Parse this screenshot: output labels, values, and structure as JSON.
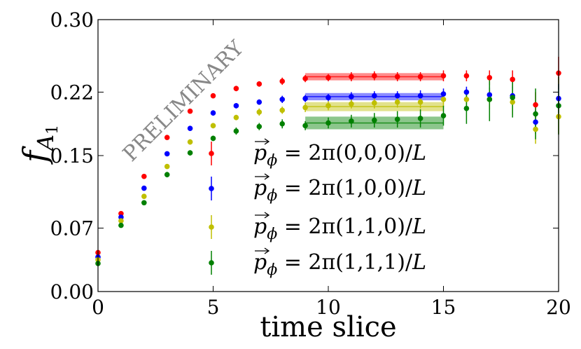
{
  "chart_data": {
    "type": "scatter",
    "title": "",
    "xlabel": "time slice",
    "ylabel": "f_A1",
    "ylabel_main": "f",
    "ylabel_sub": "A",
    "ylabel_subsub": "1",
    "xlim": [
      0,
      20
    ],
    "ylim": [
      0.0,
      0.3
    ],
    "x_ticks": [
      0,
      5,
      10,
      15,
      20
    ],
    "x_tick_labels": [
      "0",
      "5",
      "10",
      "15",
      "20"
    ],
    "y_ticks": [
      0.0,
      0.07,
      0.15,
      0.22,
      0.3
    ],
    "y_tick_labels": [
      "0.00",
      "0.07",
      "0.15",
      "0.22",
      "0.30"
    ],
    "grid": false,
    "legend_position": "lower-center",
    "watermark": "PRELIMINARY",
    "series": [
      {
        "name": "p_phi = 2pi(0,0,0)/L",
        "label": "pϕ = 2π(0,0,0)/L",
        "color": "#ff0000",
        "x": [
          0,
          1,
          2,
          3,
          4,
          5,
          6,
          7,
          8,
          9,
          10,
          11,
          12,
          13,
          14,
          15,
          16,
          17,
          18,
          19,
          20
        ],
        "y": [
          0.043,
          0.086,
          0.127,
          0.17,
          0.199,
          0.216,
          0.224,
          0.229,
          0.232,
          0.235,
          0.236,
          0.237,
          0.238,
          0.237,
          0.237,
          0.238,
          0.238,
          0.236,
          0.234,
          0.206,
          0.241
        ],
        "err": [
          0.002,
          0.002,
          0.002,
          0.002,
          0.002,
          0.002,
          0.003,
          0.003,
          0.004,
          0.004,
          0.004,
          0.005,
          0.005,
          0.005,
          0.005,
          0.006,
          0.006,
          0.008,
          0.01,
          0.014,
          0.018
        ],
        "fit": {
          "x_range": [
            9,
            15
          ],
          "value": 0.237,
          "err": 0.004
        }
      },
      {
        "name": "p_phi = 2pi(1,0,0)/L",
        "label": "pϕ = 2π(1,0,0)/L",
        "color": "#0000ff",
        "x": [
          0,
          1,
          2,
          3,
          4,
          5,
          6,
          7,
          8,
          9,
          10,
          11,
          12,
          13,
          14,
          15,
          16,
          17,
          18,
          19,
          20
        ],
        "y": [
          0.038,
          0.082,
          0.114,
          0.152,
          0.18,
          0.197,
          0.205,
          0.209,
          0.212,
          0.213,
          0.214,
          0.215,
          0.216,
          0.216,
          0.216,
          0.218,
          0.22,
          0.217,
          0.216,
          0.187,
          0.213
        ],
        "err": [
          0.002,
          0.002,
          0.002,
          0.002,
          0.002,
          0.003,
          0.003,
          0.003,
          0.004,
          0.004,
          0.004,
          0.005,
          0.005,
          0.005,
          0.006,
          0.006,
          0.006,
          0.008,
          0.01,
          0.013,
          0.016
        ],
        "fit": {
          "x_range": [
            9,
            15
          ],
          "value": 0.215,
          "err": 0.004
        }
      },
      {
        "name": "p_phi = 2pi(1,1,0)/L",
        "label": "pϕ = 2π(1,1,0)/L",
        "color": "#bfbf00",
        "x": [
          0,
          1,
          2,
          3,
          4,
          5,
          6,
          7,
          8,
          9,
          10,
          11,
          12,
          13,
          14,
          15,
          16,
          17,
          18,
          19,
          20
        ],
        "y": [
          0.035,
          0.078,
          0.105,
          0.138,
          0.165,
          0.183,
          0.192,
          0.198,
          0.2,
          0.203,
          0.205,
          0.207,
          0.208,
          0.209,
          0.209,
          0.212,
          0.212,
          0.212,
          0.209,
          0.179,
          0.193
        ],
        "err": [
          0.002,
          0.002,
          0.002,
          0.002,
          0.003,
          0.003,
          0.003,
          0.004,
          0.004,
          0.005,
          0.005,
          0.005,
          0.006,
          0.006,
          0.007,
          0.008,
          0.009,
          0.011,
          0.014,
          0.016,
          0.019
        ],
        "fit": {
          "x_range": [
            9,
            15
          ],
          "value": 0.204,
          "err": 0.005
        }
      },
      {
        "name": "p_phi = 2pi(1,1,1)/L",
        "label": "pϕ = 2π(1,1,1)/L",
        "color": "#008000",
        "x": [
          0,
          1,
          2,
          3,
          4,
          5,
          6,
          7,
          8,
          9,
          10,
          11,
          12,
          13,
          14,
          15,
          16,
          17,
          18,
          19,
          20
        ],
        "y": [
          0.031,
          0.073,
          0.098,
          0.129,
          0.153,
          0.169,
          0.177,
          0.182,
          0.185,
          0.183,
          0.186,
          0.188,
          0.189,
          0.19,
          0.191,
          0.194,
          0.202,
          0.212,
          0.214,
          0.196,
          0.205
        ],
        "err": [
          0.002,
          0.002,
          0.002,
          0.003,
          0.003,
          0.003,
          0.004,
          0.004,
          0.005,
          0.005,
          0.006,
          0.007,
          0.008,
          0.009,
          0.01,
          0.011,
          0.017,
          0.024,
          0.022,
          0.028,
          0.032
        ],
        "fit": {
          "x_range": [
            9,
            15
          ],
          "value": 0.186,
          "err": 0.007
        }
      }
    ]
  },
  "legend": [
    {
      "prefix": "p",
      "sub": "ϕ",
      "rest": " = 2π(0,0,0)/",
      "L": "L"
    },
    {
      "prefix": "p",
      "sub": "ϕ",
      "rest": " = 2π(1,0,0)/",
      "L": "L"
    },
    {
      "prefix": "p",
      "sub": "ϕ",
      "rest": " = 2π(1,1,0)/",
      "L": "L"
    },
    {
      "prefix": "p",
      "sub": "ϕ",
      "rest": " = 2π(1,1,1)/",
      "L": "L"
    }
  ]
}
